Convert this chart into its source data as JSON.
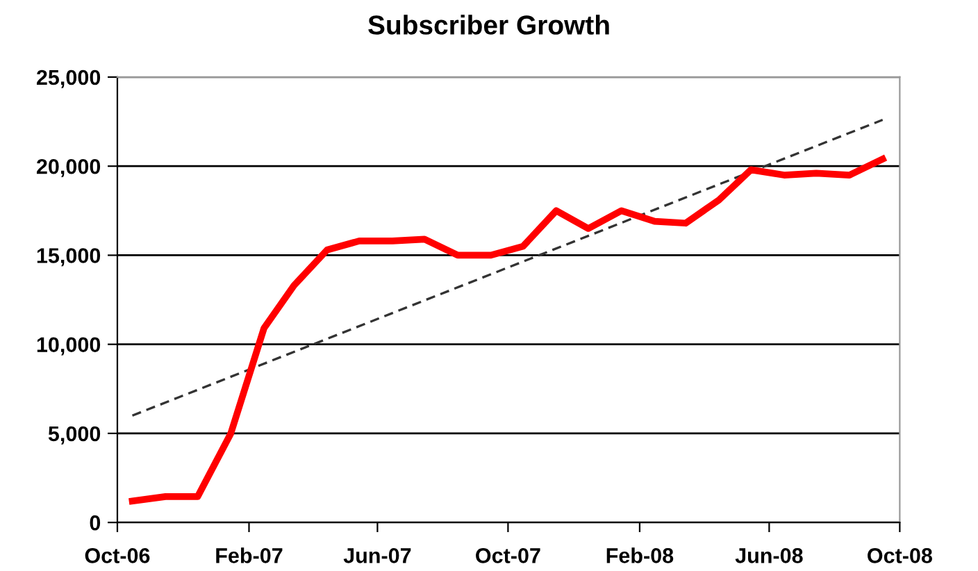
{
  "chart_data": {
    "type": "line",
    "title": "Subscriber Growth",
    "x": [
      "2006-10-15",
      "2006-11-15",
      "2006-12-15",
      "2007-01-15",
      "2007-02-15",
      "2007-03-15",
      "2007-04-15",
      "2007-05-15",
      "2007-06-15",
      "2007-07-15",
      "2007-08-15",
      "2007-09-15",
      "2007-10-15",
      "2007-11-15",
      "2007-12-15",
      "2008-01-15",
      "2008-02-15",
      "2008-03-15",
      "2008-04-15",
      "2008-05-15",
      "2008-06-15",
      "2008-07-15",
      "2008-08-15",
      "2008-09-15"
    ],
    "series": [
      {
        "color": "#ff0000",
        "line_style": "solid",
        "values": [
          1200,
          1450,
          1450,
          5000,
          10900,
          13300,
          15300,
          15800,
          15800,
          15900,
          15000,
          15000,
          15500,
          17500,
          16500,
          17500,
          16900,
          16800,
          18100,
          19800,
          19500,
          19600,
          19500,
          20400
        ]
      },
      {
        "type": "line",
        "color": "#333333",
        "line_style": "dashed",
        "x": [
          "2006-10-15",
          "2008-09-15"
        ],
        "values": [
          6000,
          22600
        ]
      }
    ],
    "xlim": [
      "2006-10-01",
      "2008-10-01"
    ],
    "xticks": [
      {
        "value": "2006-10-01",
        "label": "Oct-06"
      },
      {
        "value": "2007-02-01",
        "label": "Feb-07"
      },
      {
        "value": "2007-06-01",
        "label": "Jun-07"
      },
      {
        "value": "2007-10-01",
        "label": "Oct-07"
      },
      {
        "value": "2008-02-01",
        "label": "Feb-08"
      },
      {
        "value": "2008-06-01",
        "label": "Jun-08"
      },
      {
        "value": "2008-10-01",
        "label": "Oct-08"
      }
    ],
    "ylim": [
      0,
      25000
    ],
    "yticks": [
      0,
      {
        "value": 5000,
        "label": "5,000"
      },
      {
        "value": 10000,
        "label": "10,000"
      },
      {
        "value": 15000,
        "label": "15,000"
      },
      {
        "value": 20000,
        "label": "20,000"
      },
      {
        "value": 25000,
        "label": "25,000"
      }
    ],
    "grid": "y",
    "marker": "none"
  }
}
